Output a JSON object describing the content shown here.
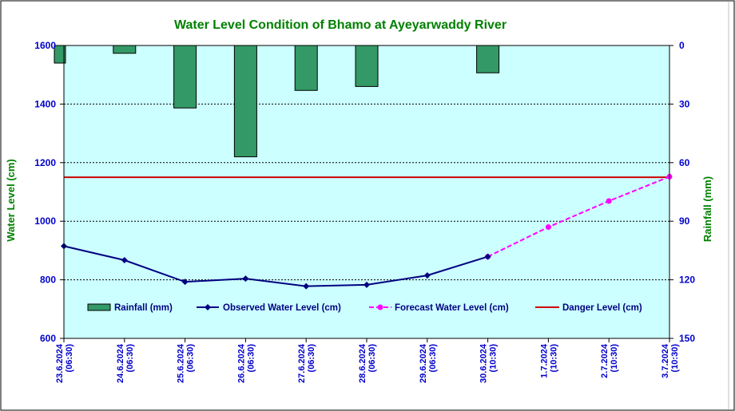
{
  "chart_data": {
    "type": "bar+line",
    "title": "Water Level Condition of Bhamo at  Ayeyarwaddy River",
    "ylabel_left": "Water Level (cm)",
    "ylabel_right": "Rainfall (mm)",
    "ylim_left": [
      600,
      1600
    ],
    "yticks_left": [
      600,
      800,
      1000,
      1200,
      1400,
      1600
    ],
    "ylim_right": [
      0,
      150
    ],
    "yticks_right": [
      0,
      30,
      60,
      90,
      120,
      150
    ],
    "right_axis_inverted": true,
    "categories": [
      [
        "23.6.2024",
        "(06:30)"
      ],
      [
        "24.6.2024",
        "(06:30)"
      ],
      [
        "25.6.2024",
        "(06:30)"
      ],
      [
        "26.6.2024",
        "(06:30)"
      ],
      [
        "27.6.2024",
        "(06:30)"
      ],
      [
        "28.6.2024",
        "(06:30)"
      ],
      [
        "29.6.2024",
        "(06:30)"
      ],
      [
        "30.6.2024",
        "(10:30)"
      ],
      [
        "1.7.2024",
        "(10:30)"
      ],
      [
        "2.7.2024",
        "(10:30)"
      ],
      [
        "3.7.2024",
        "(10:30)"
      ]
    ],
    "rainfall": {
      "name": "Rainfall (mm)",
      "color": "#339966",
      "values": [
        9,
        4,
        32,
        57,
        23,
        21,
        null,
        14,
        null,
        null,
        null
      ]
    },
    "observed": {
      "name": "Observed Water Level (cm)",
      "color": "#000080",
      "values": [
        915,
        867,
        793,
        804,
        778,
        783,
        815,
        879,
        null,
        null,
        null
      ]
    },
    "forecast": {
      "name": "Forecast Water Level (cm)",
      "color": "#ff00ff",
      "values": [
        null,
        null,
        null,
        null,
        null,
        null,
        null,
        879,
        980,
        1069,
        1152
      ]
    },
    "danger": {
      "name": "Danger Level (cm)",
      "color": "#cc0000",
      "value": 1150
    },
    "grid": true,
    "legend_position": "inside-bottom",
    "plot_background": "#ccffff",
    "title_color": "#008000",
    "tick_color": "#0000cc"
  }
}
